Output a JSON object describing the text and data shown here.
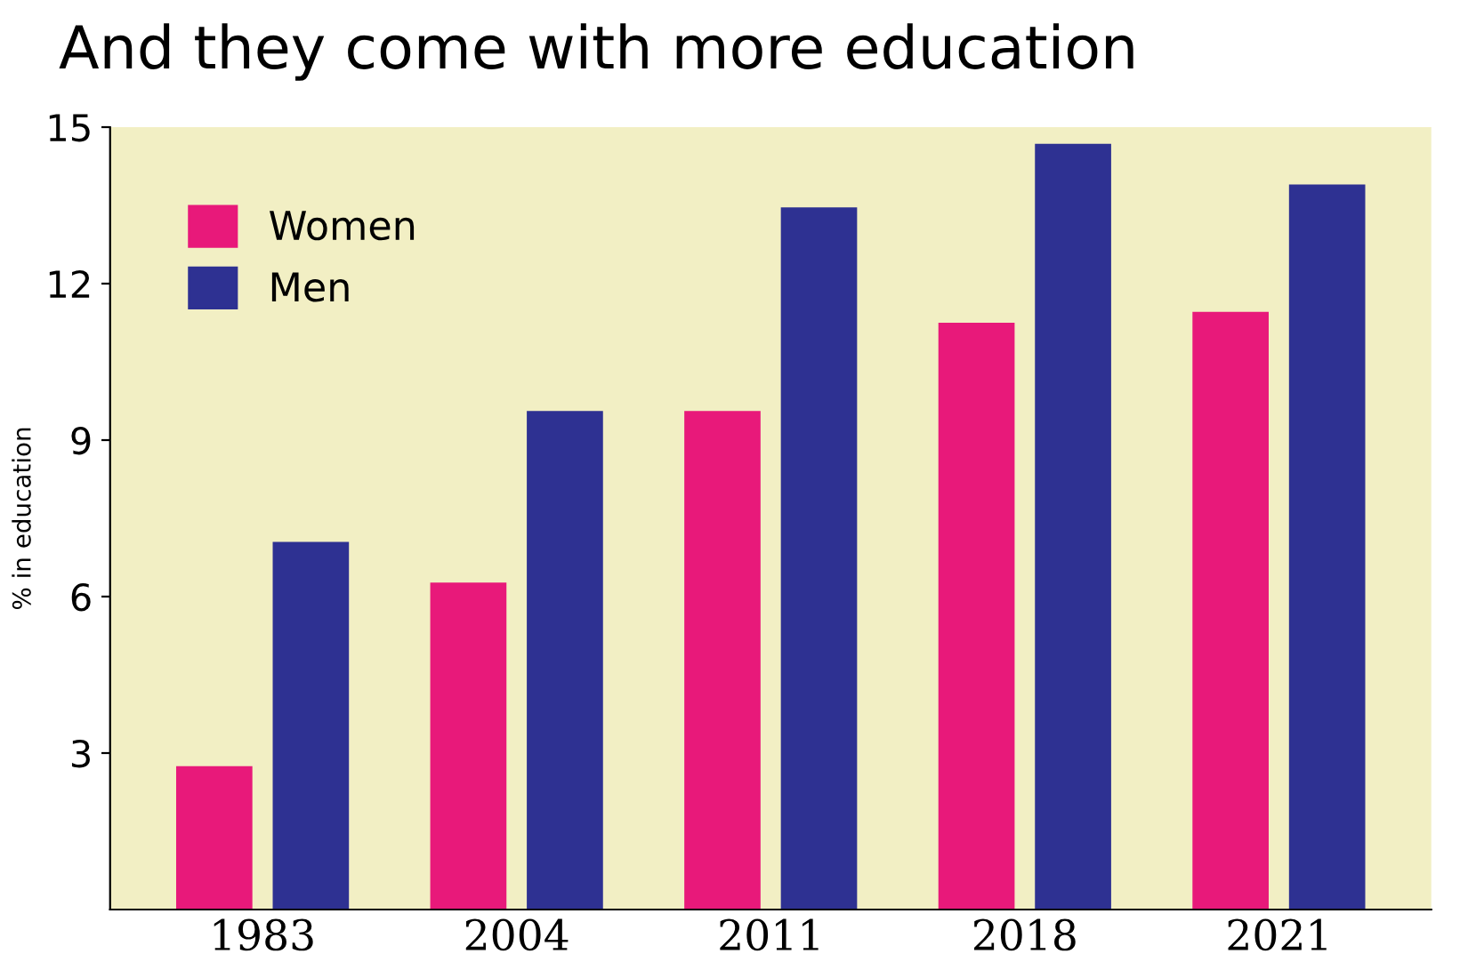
{
  "chart_data": {
    "type": "bar",
    "title": "And they come with more education",
    "ylabel": "% in education",
    "categories": [
      "1983",
      "2004",
      "2011",
      "2018",
      "2021"
    ],
    "series": [
      {
        "name": "Women",
        "color": "#e8197a",
        "values": [
          2.75,
          6.27,
          9.56,
          11.25,
          11.46
        ]
      },
      {
        "name": "Men",
        "color": "#2e3192",
        "values": [
          7.05,
          9.56,
          13.46,
          14.68,
          13.9
        ]
      }
    ],
    "ylim": [
      0,
      15
    ],
    "yticks": [
      3,
      6,
      9,
      12,
      15
    ],
    "grid": false,
    "legend": "top left"
  }
}
